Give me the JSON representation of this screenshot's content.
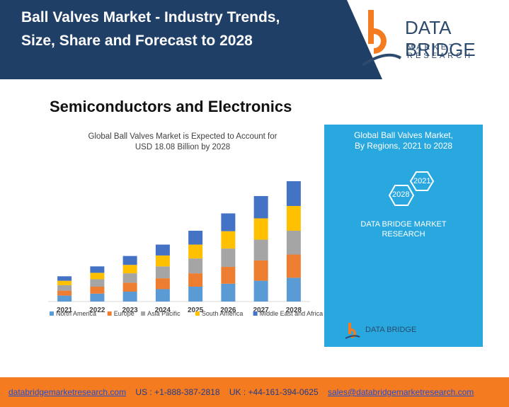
{
  "header": {
    "title_line1": "Ball Valves Market - Industry Trends,",
    "title_line2": "Size, Share and Forecast to 2028",
    "logo_line1": "DATA BRIDGE",
    "logo_line2": "MARKET RESEARCH",
    "banner_color": "#1f3f66"
  },
  "section_title": "Semiconductors and Electronics",
  "chart_data": {
    "type": "bar",
    "stacked": true,
    "title": "Global Ball Valves Market is Expected to Account for USD 18.08 Billion by 2028",
    "title_line1": "Global Ball Valves Market is Expected to Account for",
    "title_line2": "USD 18.08 Billion by 2028",
    "categories": [
      "2021",
      "2022",
      "2023",
      "2024",
      "2025",
      "2026",
      "2027",
      "2028"
    ],
    "series": [
      {
        "name": "North America",
        "color": "#5b9bd5",
        "values": [
          1.2,
          1.6,
          2.0,
          2.5,
          3.0,
          3.6,
          4.2,
          4.8
        ]
      },
      {
        "name": "Europe",
        "color": "#ed7d31",
        "values": [
          1.0,
          1.4,
          1.8,
          2.2,
          2.7,
          3.4,
          4.1,
          4.7
        ]
      },
      {
        "name": "Asia Pacific",
        "color": "#a5a5a5",
        "values": [
          1.1,
          1.5,
          1.9,
          2.4,
          3.0,
          3.7,
          4.2,
          4.8
        ]
      },
      {
        "name": "South America",
        "color": "#ffc000",
        "values": [
          0.9,
          1.3,
          1.7,
          2.2,
          2.8,
          3.5,
          4.3,
          5.0
        ]
      },
      {
        "name": "Middle East and Africa",
        "color": "#4472c4",
        "values": [
          0.9,
          1.3,
          1.8,
          2.2,
          2.8,
          3.6,
          4.5,
          5.0
        ]
      }
    ],
    "legend_position": "bottom",
    "grid": false
  },
  "blue_panel": {
    "title_line1": "Global Ball Valves Market,",
    "title_line2": "By Regions, 2021 to 2028",
    "hex_label_1": "2021",
    "hex_label_2": "2028",
    "text_line1": "DATA BRIDGE MARKET",
    "text_line2": "RESEARCH",
    "mini_logo_text": "DATA BRIDGE",
    "color": "#29a8e0"
  },
  "footer": {
    "website": "databridgemarketresearch.com",
    "us_phone": "US : +1-888-387-2818",
    "uk_phone": "UK : +44-161-394-0625",
    "email": "sales@databridgemarketresearch.com",
    "color": "#f47b20"
  }
}
